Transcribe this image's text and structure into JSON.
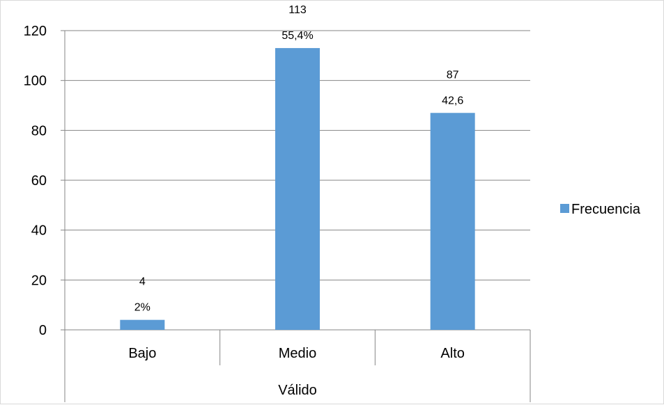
{
  "chart_data": {
    "type": "bar",
    "categories": [
      "Bajo",
      "Medio",
      "Alto"
    ],
    "group_label": "Válido",
    "series": [
      {
        "name": "Frecuencia",
        "values": [
          4,
          113,
          87
        ],
        "labels": [
          "4\n2%",
          "113\n55,4%",
          "87\n42,6"
        ],
        "color": "#5b9bd5"
      }
    ],
    "yticks": [
      "0",
      "20",
      "40",
      "60",
      "80",
      "100",
      "120"
    ],
    "ylim": [
      0,
      120
    ],
    "grid": true,
    "legend_position": "right"
  }
}
